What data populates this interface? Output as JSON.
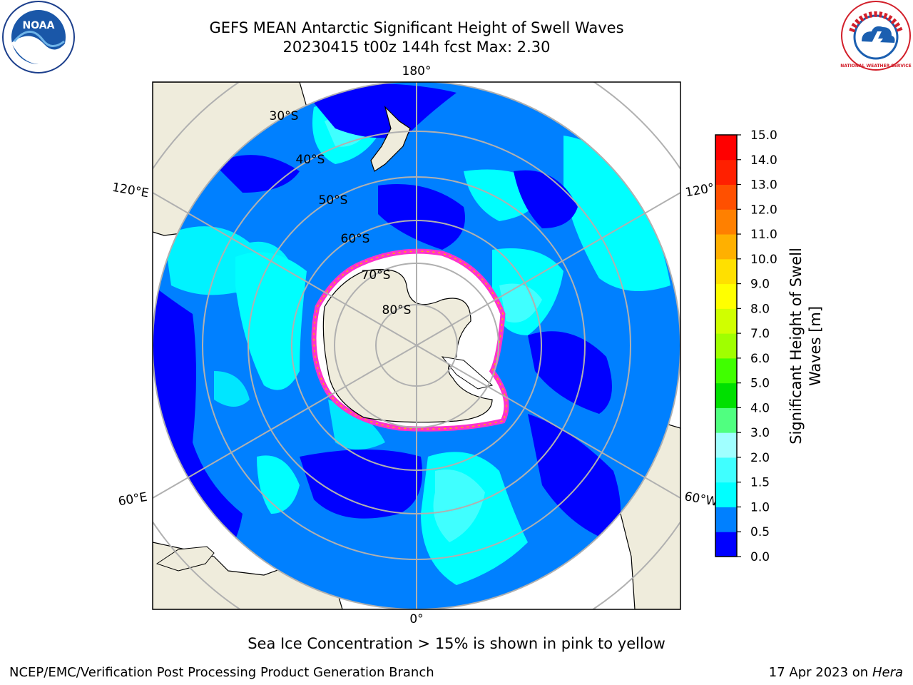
{
  "title": {
    "line1": "GEFS MEAN Antarctic Significant Height of Swell Waves",
    "line2": "20230415 t00z 144h fcst   Max: 2.30"
  },
  "logos": {
    "left": "NOAA",
    "right": "NATIONAL WEATHER SERVICE"
  },
  "map": {
    "projection": "south-polar-stereographic",
    "longitude_labels": [
      "180°",
      "120°E",
      "120°",
      "60°E",
      "60°W",
      "0°"
    ],
    "latitude_labels": [
      "30°S",
      "40°S",
      "50°S",
      "60°S",
      "70°S",
      "80°S"
    ],
    "colors": {
      "land": "#efecdc",
      "ice_edge": "#ff33cc",
      "grid": "#b0b0b0"
    },
    "max_value": 2.3
  },
  "colorbar": {
    "title_line1": "Significant Height of Swell",
    "title_line2": "Waves [m]",
    "tick_labels": [
      "0.0",
      "0.5",
      "1.0",
      "1.5",
      "2.0",
      "3.0",
      "4.0",
      "5.0",
      "6.0",
      "7.0",
      "8.0",
      "9.0",
      "10.0",
      "11.0",
      "12.0",
      "13.0",
      "14.0",
      "15.0"
    ],
    "colors": [
      "#0000ff",
      "#0080ff",
      "#00ffff",
      "#40ffff",
      "#a0ffff",
      "#50ff80",
      "#00e000",
      "#40ff00",
      "#a0ff00",
      "#d0ff00",
      "#ffff00",
      "#ffe000",
      "#ffb000",
      "#ff8000",
      "#ff5000",
      "#ff2000",
      "#ff0000"
    ]
  },
  "captions": {
    "ice_note": "Sea Ice Concentration > 15% is shown in pink to yellow",
    "footer_left": "NCEP/EMC/Verification Post Processing Product Generation Branch",
    "footer_date": "17 Apr 2023 on ",
    "footer_machine": "Hera"
  }
}
